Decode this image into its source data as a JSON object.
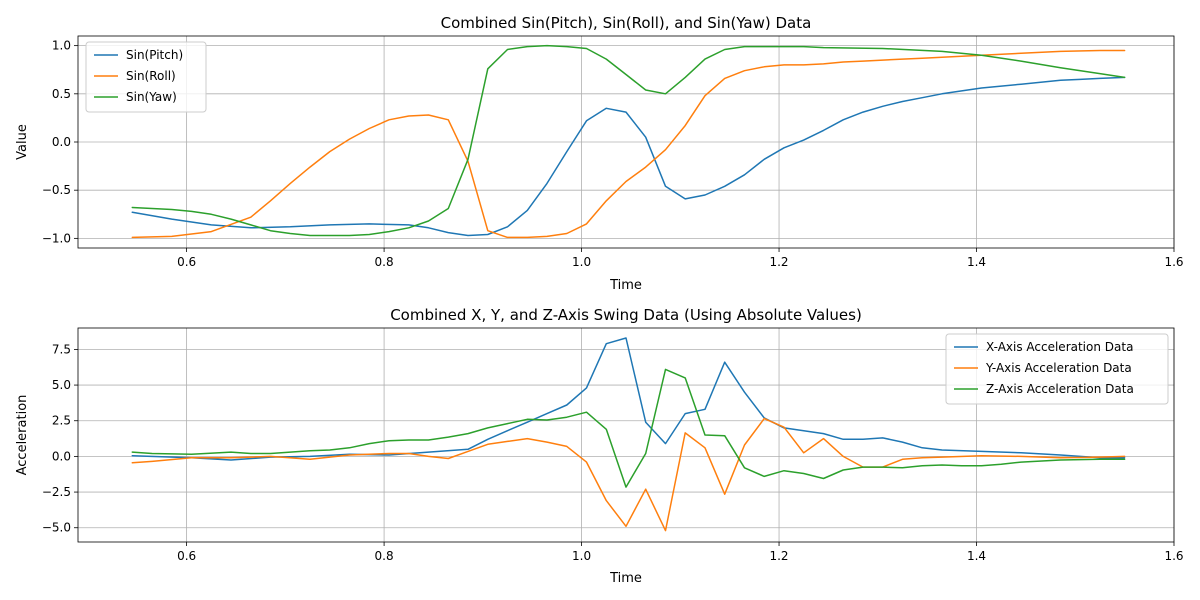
{
  "chart_data": [
    {
      "type": "line",
      "title": "Combined Sin(Pitch), Sin(Roll), and Sin(Yaw) Data",
      "xlabel": "Time",
      "ylabel": "Value",
      "xlim": [
        0.49,
        1.6
      ],
      "ylim": [
        -1.1,
        1.1
      ],
      "xticks": [
        0.6,
        0.8,
        1.0,
        1.2,
        1.4,
        1.6
      ],
      "xtick_labels": [
        "0.6",
        "0.8",
        "1.0",
        "1.2",
        "1.4",
        "1.6"
      ],
      "yticks": [
        -1.0,
        -0.5,
        0.0,
        0.5,
        1.0
      ],
      "ytick_labels": [
        "−1.0",
        "−0.5",
        "0.0",
        "0.5",
        "1.0"
      ],
      "grid": true,
      "legend_position": "upper-left",
      "series": [
        {
          "name": "Sin(Pitch)",
          "color": "#1f77b4",
          "x": [
            0.545,
            0.585,
            0.625,
            0.665,
            0.705,
            0.745,
            0.785,
            0.825,
            0.845,
            0.865,
            0.885,
            0.905,
            0.925,
            0.945,
            0.965,
            0.985,
            1.005,
            1.025,
            1.045,
            1.065,
            1.085,
            1.105,
            1.125,
            1.145,
            1.165,
            1.185,
            1.205,
            1.225,
            1.245,
            1.265,
            1.285,
            1.305,
            1.325,
            1.345,
            1.365,
            1.385,
            1.405,
            1.425,
            1.445,
            1.465,
            1.485,
            1.505,
            1.525,
            1.55
          ],
          "y": [
            -0.73,
            -0.8,
            -0.86,
            -0.89,
            -0.88,
            -0.86,
            -0.85,
            -0.86,
            -0.89,
            -0.94,
            -0.97,
            -0.96,
            -0.88,
            -0.71,
            -0.43,
            -0.1,
            0.22,
            0.35,
            0.31,
            0.05,
            -0.46,
            -0.59,
            -0.55,
            -0.46,
            -0.34,
            -0.18,
            -0.06,
            0.02,
            0.12,
            0.23,
            0.31,
            0.37,
            0.42,
            0.46,
            0.5,
            0.53,
            0.56,
            0.58,
            0.6,
            0.62,
            0.64,
            0.65,
            0.66,
            0.67
          ]
        },
        {
          "name": "Sin(Roll)",
          "color": "#ff7f0e",
          "x": [
            0.545,
            0.585,
            0.625,
            0.665,
            0.685,
            0.705,
            0.725,
            0.745,
            0.765,
            0.785,
            0.805,
            0.825,
            0.845,
            0.865,
            0.885,
            0.905,
            0.925,
            0.945,
            0.965,
            0.985,
            1.005,
            1.025,
            1.045,
            1.065,
            1.085,
            1.105,
            1.125,
            1.145,
            1.165,
            1.185,
            1.205,
            1.225,
            1.245,
            1.265,
            1.285,
            1.305,
            1.325,
            1.345,
            1.365,
            1.385,
            1.405,
            1.445,
            1.485,
            1.525,
            1.55
          ],
          "y": [
            -0.99,
            -0.98,
            -0.93,
            -0.78,
            -0.61,
            -0.43,
            -0.26,
            -0.1,
            0.03,
            0.14,
            0.23,
            0.27,
            0.28,
            0.23,
            -0.2,
            -0.92,
            -0.99,
            -0.99,
            -0.98,
            -0.95,
            -0.85,
            -0.61,
            -0.41,
            -0.26,
            -0.08,
            0.17,
            0.48,
            0.66,
            0.74,
            0.78,
            0.8,
            0.8,
            0.81,
            0.83,
            0.84,
            0.85,
            0.86,
            0.87,
            0.88,
            0.89,
            0.9,
            0.92,
            0.94,
            0.95,
            0.95
          ]
        },
        {
          "name": "Sin(Yaw)",
          "color": "#2ca02c",
          "x": [
            0.545,
            0.585,
            0.605,
            0.625,
            0.645,
            0.665,
            0.685,
            0.705,
            0.725,
            0.745,
            0.765,
            0.785,
            0.805,
            0.825,
            0.845,
            0.865,
            0.885,
            0.905,
            0.925,
            0.945,
            0.965,
            0.985,
            1.005,
            1.025,
            1.045,
            1.065,
            1.085,
            1.105,
            1.125,
            1.145,
            1.165,
            1.185,
            1.225,
            1.245,
            1.305,
            1.365,
            1.405,
            1.445,
            1.485,
            1.525,
            1.55
          ],
          "y": [
            -0.68,
            -0.7,
            -0.72,
            -0.75,
            -0.8,
            -0.86,
            -0.92,
            -0.95,
            -0.97,
            -0.97,
            -0.97,
            -0.96,
            -0.93,
            -0.89,
            -0.82,
            -0.69,
            -0.18,
            0.76,
            0.96,
            0.99,
            1.0,
            0.99,
            0.97,
            0.86,
            0.7,
            0.54,
            0.5,
            0.67,
            0.86,
            0.96,
            0.99,
            0.99,
            0.99,
            0.98,
            0.97,
            0.94,
            0.9,
            0.84,
            0.77,
            0.71,
            0.67
          ]
        }
      ]
    },
    {
      "type": "line",
      "title": "Combined X, Y, and Z-Axis Swing Data (Using Absolute Values)",
      "xlabel": "Time",
      "ylabel": "Acceleration",
      "xlim": [
        0.49,
        1.6
      ],
      "ylim": [
        -6.0,
        9.0
      ],
      "xticks": [
        0.6,
        0.8,
        1.0,
        1.2,
        1.4,
        1.6
      ],
      "xtick_labels": [
        "0.6",
        "0.8",
        "1.0",
        "1.2",
        "1.4",
        "1.6"
      ],
      "yticks": [
        -5.0,
        -2.5,
        0.0,
        2.5,
        5.0,
        7.5
      ],
      "ytick_labels": [
        "−5.0",
        "−2.5",
        "0.0",
        "2.5",
        "5.0",
        "7.5"
      ],
      "grid": true,
      "legend_position": "upper-right",
      "series": [
        {
          "name": "X-Axis Acceleration Data",
          "color": "#1f77b4",
          "x": [
            0.545,
            0.605,
            0.645,
            0.685,
            0.725,
            0.765,
            0.805,
            0.845,
            0.885,
            0.905,
            0.925,
            0.945,
            0.965,
            0.985,
            1.005,
            1.025,
            1.045,
            1.065,
            1.085,
            1.105,
            1.125,
            1.145,
            1.165,
            1.185,
            1.205,
            1.245,
            1.265,
            1.285,
            1.305,
            1.325,
            1.345,
            1.365,
            1.405,
            1.445,
            1.485,
            1.525,
            1.55
          ],
          "y": [
            0.05,
            -0.1,
            -0.25,
            -0.05,
            0.0,
            0.15,
            0.1,
            0.3,
            0.5,
            1.2,
            1.8,
            2.4,
            3.0,
            3.6,
            4.8,
            7.9,
            8.3,
            2.4,
            0.9,
            3.0,
            3.3,
            6.6,
            4.5,
            2.7,
            2.0,
            1.6,
            1.2,
            1.2,
            1.3,
            1.0,
            0.6,
            0.45,
            0.35,
            0.25,
            0.1,
            -0.1,
            -0.1
          ]
        },
        {
          "name": "Y-Axis Acceleration Data",
          "color": "#ff7f0e",
          "x": [
            0.545,
            0.565,
            0.605,
            0.645,
            0.685,
            0.725,
            0.765,
            0.805,
            0.825,
            0.845,
            0.865,
            0.885,
            0.905,
            0.925,
            0.945,
            0.965,
            0.985,
            1.005,
            1.025,
            1.045,
            1.065,
            1.085,
            1.105,
            1.125,
            1.145,
            1.165,
            1.185,
            1.205,
            1.225,
            1.245,
            1.265,
            1.285,
            1.305,
            1.325,
            1.345,
            1.365,
            1.405,
            1.445,
            1.485,
            1.525,
            1.55
          ],
          "y": [
            -0.45,
            -0.35,
            -0.1,
            -0.1,
            0.0,
            -0.2,
            0.1,
            0.2,
            0.2,
            0.0,
            -0.15,
            0.35,
            0.85,
            1.05,
            1.25,
            1.0,
            0.7,
            -0.4,
            -3.1,
            -4.9,
            -2.3,
            -5.2,
            1.65,
            0.6,
            -2.65,
            0.8,
            2.65,
            2.05,
            0.25,
            1.25,
            0.0,
            -0.75,
            -0.75,
            -0.2,
            -0.1,
            -0.05,
            0.05,
            0.0,
            -0.1,
            -0.05,
            0.0
          ]
        },
        {
          "name": "Z-Axis Acceleration Data",
          "color": "#2ca02c",
          "x": [
            0.545,
            0.565,
            0.605,
            0.645,
            0.665,
            0.685,
            0.725,
            0.745,
            0.765,
            0.785,
            0.805,
            0.825,
            0.845,
            0.865,
            0.885,
            0.905,
            0.925,
            0.945,
            0.965,
            0.985,
            1.005,
            1.025,
            1.045,
            1.065,
            1.085,
            1.105,
            1.125,
            1.145,
            1.165,
            1.185,
            1.205,
            1.225,
            1.245,
            1.265,
            1.285,
            1.305,
            1.325,
            1.345,
            1.365,
            1.385,
            1.405,
            1.425,
            1.445,
            1.485,
            1.525,
            1.55
          ],
          "y": [
            0.3,
            0.2,
            0.15,
            0.3,
            0.2,
            0.2,
            0.4,
            0.45,
            0.6,
            0.9,
            1.1,
            1.15,
            1.15,
            1.35,
            1.6,
            2.0,
            2.3,
            2.6,
            2.55,
            2.75,
            3.1,
            1.9,
            -2.15,
            0.2,
            6.1,
            5.5,
            1.5,
            1.45,
            -0.8,
            -1.4,
            -1.0,
            -1.2,
            -1.55,
            -0.95,
            -0.75,
            -0.75,
            -0.8,
            -0.65,
            -0.6,
            -0.65,
            -0.65,
            -0.55,
            -0.4,
            -0.25,
            -0.2,
            -0.2
          ]
        }
      ]
    }
  ]
}
